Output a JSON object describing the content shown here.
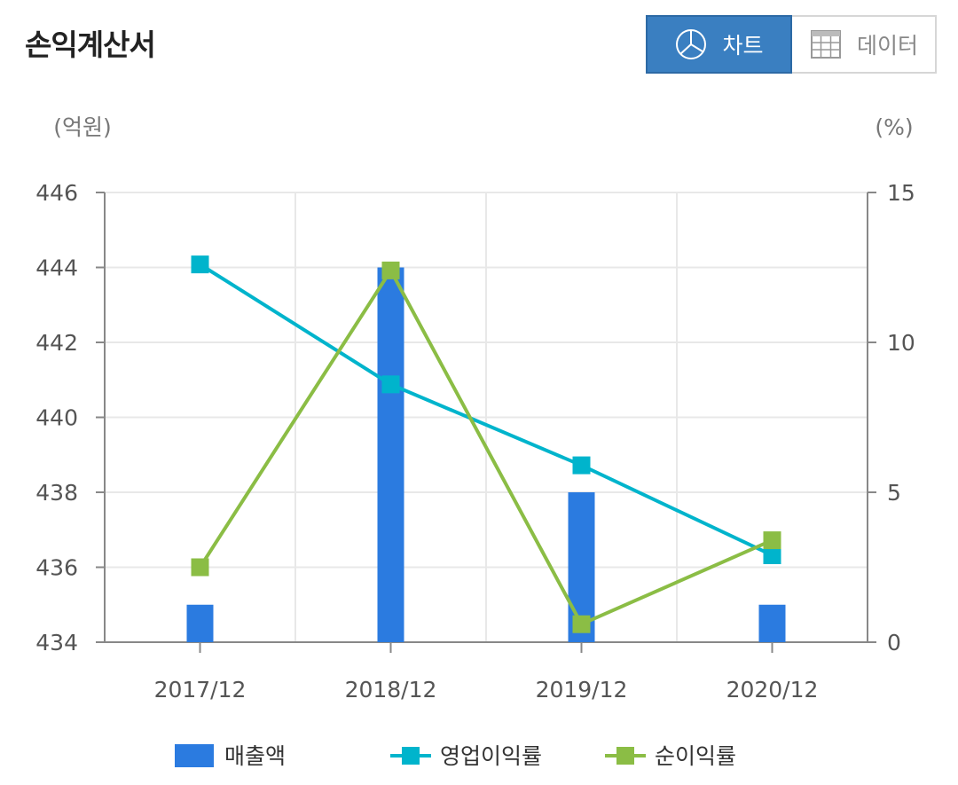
{
  "header": {
    "title": "손익계산서",
    "toggle": {
      "chart_label": "차트",
      "data_label": "데이터",
      "chart_icon": "pie-chart-icon",
      "data_icon": "table-grid-icon",
      "active": "chart"
    }
  },
  "colors": {
    "revenue": "#2b7be0",
    "op_margin": "#00b4cc",
    "net_margin": "#8bbd45",
    "toggle_active": "#3a7fc1",
    "grid": "#e8e8e8",
    "axis": "#888888"
  },
  "chart_data": {
    "type": "bar",
    "categories": [
      "2017/12",
      "2018/12",
      "2019/12",
      "2020/12"
    ],
    "y_left": {
      "unit_label": "(억원)",
      "ylim": [
        434,
        446
      ],
      "ticks": [
        434,
        436,
        438,
        440,
        442,
        444,
        446
      ]
    },
    "y_right": {
      "unit_label": "(%)",
      "ylim": [
        0,
        15
      ],
      "ticks": [
        0,
        5,
        10,
        15
      ]
    },
    "grid": true,
    "legend_position": "bottom",
    "series": [
      {
        "name": "매출액",
        "type": "bar",
        "axis": "left",
        "values": [
          435,
          444,
          438,
          435
        ]
      },
      {
        "name": "영업이익률",
        "type": "line",
        "axis": "right",
        "values": [
          12.6,
          8.6,
          5.9,
          2.9
        ]
      },
      {
        "name": "순이익률",
        "type": "line",
        "axis": "right",
        "values": [
          2.5,
          12.4,
          0.6,
          3.4
        ]
      }
    ]
  }
}
